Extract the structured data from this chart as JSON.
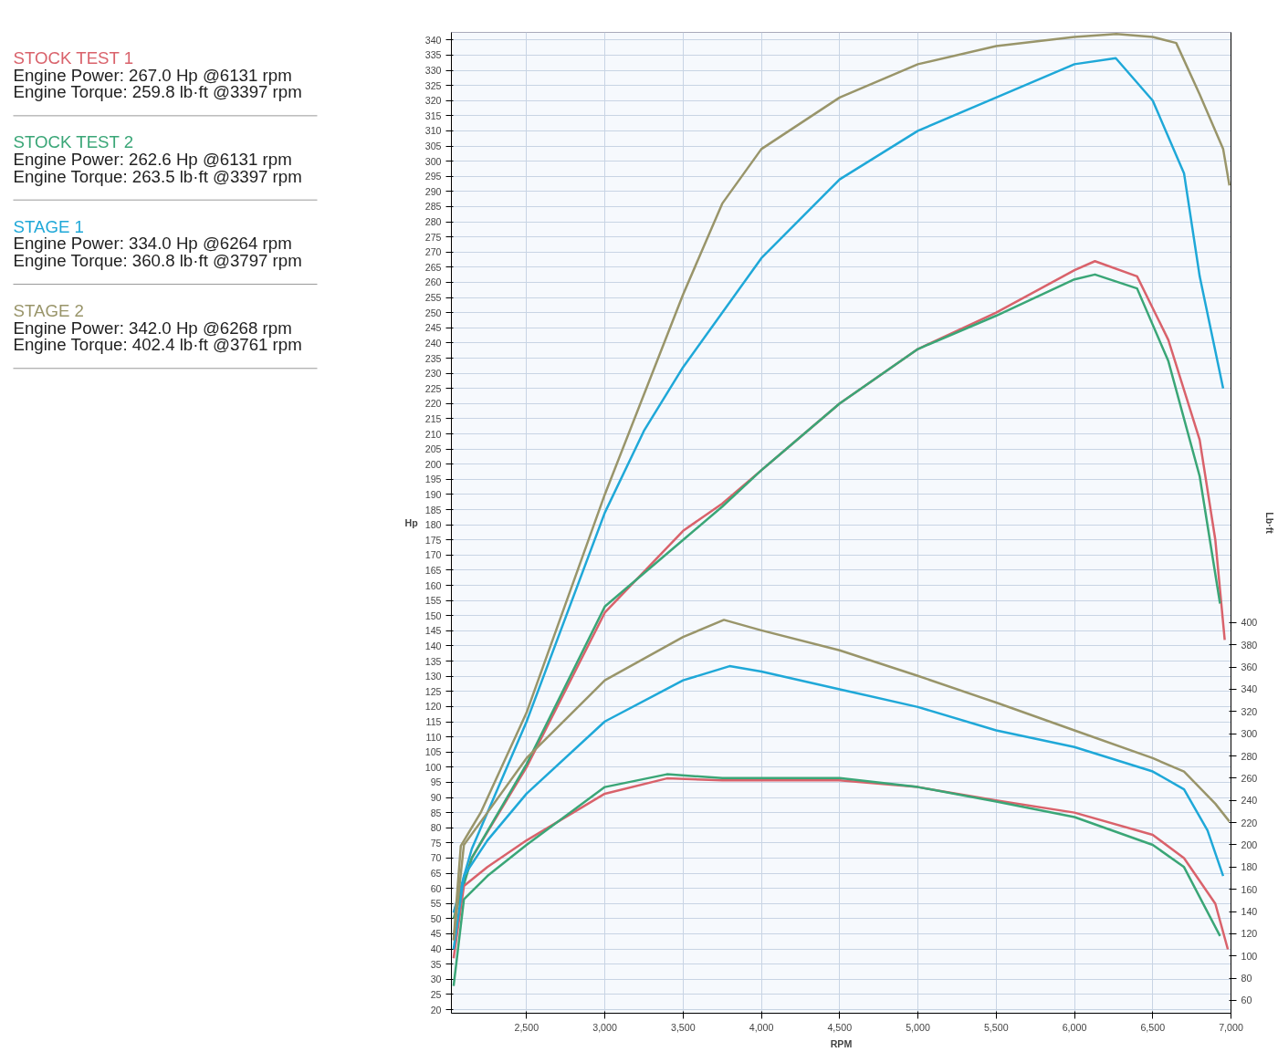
{
  "chart_data": {
    "type": "line",
    "xlabel": "RPM",
    "ylabel": "Hp",
    "y2label": "Lb·ft",
    "xlim": [
      2020,
      7000
    ],
    "ylim": [
      18.8,
      342.5
    ],
    "y2lim": [
      48.5,
      931
    ],
    "xticks": [
      {
        "value": 2500,
        "label": "2,500"
      },
      {
        "value": 3000,
        "label": "3,000"
      },
      {
        "value": 3500,
        "label": "3,500"
      },
      {
        "value": 4000,
        "label": "4,000"
      },
      {
        "value": 4500,
        "label": "4,500"
      },
      {
        "value": 5000,
        "label": "5,000"
      },
      {
        "value": 5500,
        "label": "5,500"
      },
      {
        "value": 6000,
        "label": "6,000"
      },
      {
        "value": 6500,
        "label": "6,500"
      },
      {
        "value": 7000,
        "label": "7,000"
      }
    ],
    "yticks": [
      20,
      25,
      30,
      35,
      40,
      45,
      50,
      55,
      60,
      65,
      70,
      75,
      80,
      85,
      90,
      95,
      100,
      105,
      110,
      115,
      120,
      125,
      130,
      135,
      140,
      145,
      150,
      155,
      160,
      165,
      170,
      175,
      180,
      185,
      190,
      195,
      200,
      205,
      210,
      215,
      220,
      225,
      230,
      235,
      240,
      245,
      250,
      255,
      260,
      265,
      270,
      275,
      280,
      285,
      290,
      295,
      300,
      305,
      310,
      315,
      320,
      325,
      330,
      335,
      340
    ],
    "y2ticks": [
      60,
      80,
      100,
      120,
      140,
      160,
      180,
      200,
      220,
      240,
      260,
      280,
      300,
      320,
      340,
      360,
      380,
      400
    ],
    "grid": true,
    "legend": "left",
    "line_style": "solid",
    "annotations": [
      "Engine Power: 267.0 Hp @6131 rpm",
      "Engine Torque: 259.8 lb·ft @3397 rpm",
      "Engine Power: 262.6 Hp @6131 rpm",
      "Engine Torque: 263.5 lb·ft @3397 rpm",
      "Engine Power: 334.0 Hp @6264 rpm",
      "Engine Torque: 360.8 lb·ft @3797 rpm",
      "Engine Power: 342.0 Hp @6268 rpm",
      "Engine Torque: 402.4 lb·ft @3761 rpm"
    ],
    "series": [
      {
        "name": "STOCK TEST 1",
        "color": "#d9626b",
        "x": [
          2034,
          2150,
          2500,
          3000,
          3500,
          3750,
          4000,
          4500,
          5000,
          5500,
          6000,
          6131,
          6400,
          6600,
          6800,
          6900,
          6960
        ],
        "values": [
          52,
          70,
          100,
          151,
          178,
          187,
          198,
          220,
          238,
          250,
          264,
          267,
          262,
          241,
          208,
          175,
          142
        ]
      },
      {
        "name": "STOCK TEST 2",
        "color": "#3aa677",
        "x": [
          2034,
          2150,
          2500,
          3000,
          3500,
          3750,
          4000,
          4500,
          5000,
          5500,
          6000,
          6131,
          6400,
          6600,
          6800,
          6930
        ],
        "values": [
          50,
          70,
          101,
          153,
          175,
          186,
          198,
          220,
          238,
          249,
          261,
          262.6,
          258,
          234,
          196,
          154
        ]
      },
      {
        "name": "STAGE 1",
        "color": "#1fa8d8",
        "x": [
          2034,
          2150,
          2500,
          3000,
          3250,
          3500,
          4000,
          4500,
          5000,
          5500,
          6000,
          6264,
          6500,
          6700,
          6800,
          6950
        ],
        "values": [
          52,
          73,
          115,
          184,
          211,
          232,
          268,
          294,
          310,
          321,
          332,
          334,
          320,
          296,
          262,
          225
        ]
      },
      {
        "name": "STAGE 2",
        "color": "#99956a",
        "x": [
          2034,
          2080,
          2207,
          2500,
          3000,
          3500,
          3750,
          4000,
          4500,
          5000,
          5500,
          6000,
          6268,
          6500,
          6650,
          6800,
          6950,
          6990
        ],
        "values": [
          43,
          74,
          85,
          118,
          190,
          256,
          286,
          304,
          321,
          332,
          338,
          341,
          342,
          341,
          339,
          322,
          304,
          292
        ]
      },
      {
        "color": "#d9626b",
        "axis": "y2",
        "x": [
          2034,
          2100,
          2250,
          2500,
          3000,
          3397,
          3750,
          4000,
          4500,
          5000,
          5500,
          6000,
          6500,
          6700,
          6900,
          6980
        ],
        "values": [
          98,
          163,
          180,
          204,
          246,
          259.8,
          258,
          258,
          258,
          252,
          240,
          229,
          209,
          188,
          147,
          106
        ]
      },
      {
        "color": "#3aa677",
        "axis": "y2",
        "x": [
          2034,
          2100,
          2250,
          2500,
          3000,
          3397,
          3750,
          4500,
          5000,
          5500,
          6000,
          6500,
          6700,
          6930
        ],
        "values": [
          73,
          151,
          172,
          200,
          252,
          263.5,
          260,
          260,
          252,
          239,
          225,
          200,
          180,
          118
        ]
      },
      {
        "color": "#1fa8d8",
        "axis": "y2",
        "x": [
          2034,
          2100,
          2250,
          2500,
          3000,
          3500,
          3797,
          4000,
          4500,
          5000,
          5500,
          6000,
          6500,
          6700,
          6850,
          6950
        ],
        "values": [
          106,
          172,
          204,
          246,
          311,
          348,
          360.8,
          356,
          340,
          324,
          303,
          288,
          266,
          250,
          213,
          172
        ]
      },
      {
        "color": "#99956a",
        "axis": "y2",
        "x": [
          2034,
          2100,
          2250,
          2500,
          3000,
          3500,
          3761,
          4000,
          4500,
          5000,
          5500,
          6000,
          6500,
          6700,
          6900,
          6990
        ],
        "values": [
          114,
          200,
          229,
          278,
          348,
          387,
          402.4,
          393,
          375,
          352,
          328,
          303,
          278,
          266,
          237,
          221
        ]
      }
    ]
  }
}
